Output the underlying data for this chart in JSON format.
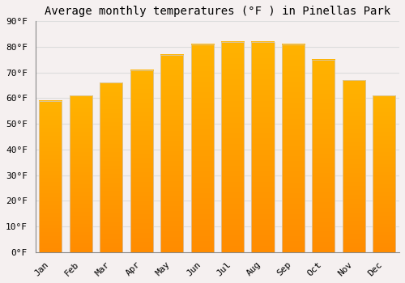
{
  "title": "Average monthly temperatures (°F ) in Pinellas Park",
  "months": [
    "Jan",
    "Feb",
    "Mar",
    "Apr",
    "May",
    "Jun",
    "Jul",
    "Aug",
    "Sep",
    "Oct",
    "Nov",
    "Dec"
  ],
  "values": [
    59,
    61,
    66,
    71,
    77,
    81,
    82,
    82,
    81,
    75,
    67,
    61
  ],
  "bar_color_top": "#FFB300",
  "bar_color_bottom": "#FF8C00",
  "bar_edge_color": "#CCCCCC",
  "ylim": [
    0,
    90
  ],
  "yticks": [
    0,
    10,
    20,
    30,
    40,
    50,
    60,
    70,
    80,
    90
  ],
  "background_color": "#F5F0F0",
  "plot_bg_color": "#F5F0F0",
  "grid_color": "#DDDDDD",
  "title_fontsize": 10,
  "tick_fontsize": 8,
  "font_family": "monospace",
  "bar_width": 0.75
}
